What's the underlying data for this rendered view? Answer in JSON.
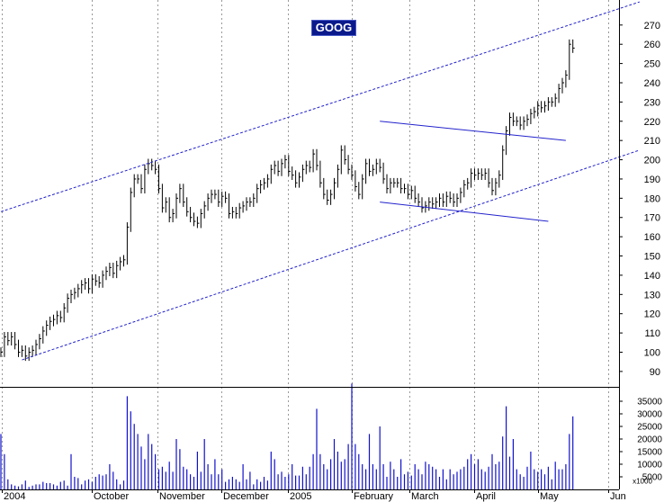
{
  "chart_data": {
    "type": "ohlc",
    "title": "GOOG",
    "x_labels": [
      "2004",
      "October",
      "November",
      "December",
      "2005",
      "February",
      "March",
      "April",
      "May",
      "Jun"
    ],
    "price_axis": {
      "ticks": [
        90,
        100,
        110,
        120,
        130,
        140,
        150,
        160,
        170,
        180,
        190,
        200,
        210,
        220,
        230,
        240,
        250,
        260,
        270
      ],
      "ylim": [
        82,
        283
      ]
    },
    "volume_axis": {
      "ticks": [
        5000,
        10000,
        15000,
        20000,
        25000,
        30000,
        35000
      ],
      "tick_labels": [
        "5000",
        "10000",
        "15000",
        "20000",
        "25000",
        "30000",
        "35000"
      ],
      "multiplier_label": "x1000",
      "ylim": [
        0,
        40000
      ]
    },
    "trendlines": [
      {
        "name": "upper channel",
        "style": "dashed",
        "from": [
          0,
          173
        ],
        "to": [
          182,
          282
        ]
      },
      {
        "name": "lower channel",
        "style": "dashed",
        "from": [
          6,
          96
        ],
        "to": [
          182,
          205
        ]
      },
      {
        "name": "resistance",
        "style": "solid",
        "from": [
          108,
          220
        ],
        "to": [
          161,
          210
        ]
      },
      {
        "name": "support",
        "style": "solid",
        "from": [
          108,
          178
        ],
        "to": [
          156,
          168
        ]
      }
    ],
    "colors": {
      "bars": "#000000",
      "volume": "#1111cc",
      "trendlines": "#2222cc",
      "grid": "#999999",
      "title_bg": "#0a1a8c"
    },
    "price_series": [
      [
        0,
        100
      ],
      [
        1,
        108
      ],
      [
        2,
        106
      ],
      [
        3,
        108
      ],
      [
        4,
        104
      ],
      [
        5,
        100
      ],
      [
        6,
        101
      ],
      [
        7,
        98
      ],
      [
        8,
        100
      ],
      [
        9,
        101
      ],
      [
        10,
        104
      ],
      [
        11,
        107
      ],
      [
        12,
        111
      ],
      [
        13,
        114
      ],
      [
        14,
        116
      ],
      [
        15,
        117
      ],
      [
        16,
        119
      ],
      [
        17,
        118
      ],
      [
        18,
        123
      ],
      [
        19,
        128
      ],
      [
        20,
        130
      ],
      [
        21,
        131
      ],
      [
        22,
        133
      ],
      [
        23,
        135
      ],
      [
        24,
        136
      ],
      [
        25,
        133
      ],
      [
        26,
        138
      ],
      [
        27,
        137
      ],
      [
        28,
        136
      ],
      [
        29,
        140
      ],
      [
        30,
        142
      ],
      [
        31,
        144
      ],
      [
        32,
        141
      ],
      [
        33,
        145
      ],
      [
        34,
        147
      ],
      [
        35,
        148
      ],
      [
        36,
        165
      ],
      [
        37,
        183
      ],
      [
        38,
        190
      ],
      [
        39,
        190
      ],
      [
        40,
        185
      ],
      [
        41,
        195
      ],
      [
        42,
        198
      ],
      [
        43,
        197
      ],
      [
        44,
        195
      ],
      [
        45,
        185
      ],
      [
        46,
        175
      ],
      [
        47,
        178
      ],
      [
        48,
        170
      ],
      [
        49,
        172
      ],
      [
        50,
        180
      ],
      [
        51,
        185
      ],
      [
        52,
        178
      ],
      [
        53,
        173
      ],
      [
        54,
        170
      ],
      [
        55,
        168
      ],
      [
        56,
        167
      ],
      [
        57,
        172
      ],
      [
        58,
        176
      ],
      [
        59,
        180
      ],
      [
        60,
        182
      ],
      [
        61,
        182
      ],
      [
        62,
        178
      ],
      [
        63,
        181
      ],
      [
        64,
        180
      ],
      [
        65,
        172
      ],
      [
        66,
        173
      ],
      [
        67,
        172
      ],
      [
        68,
        175
      ],
      [
        69,
        176
      ],
      [
        70,
        178
      ],
      [
        71,
        178
      ],
      [
        72,
        180
      ],
      [
        73,
        185
      ],
      [
        74,
        187
      ],
      [
        75,
        188
      ],
      [
        76,
        190
      ],
      [
        77,
        195
      ],
      [
        78,
        197
      ],
      [
        79,
        194
      ],
      [
        80,
        198
      ],
      [
        81,
        200
      ],
      [
        82,
        194
      ],
      [
        83,
        192
      ],
      [
        84,
        188
      ],
      [
        85,
        191
      ],
      [
        86,
        195
      ],
      [
        87,
        197
      ],
      [
        88,
        196
      ],
      [
        89,
        203
      ],
      [
        90,
        197
      ],
      [
        91,
        188
      ],
      [
        92,
        182
      ],
      [
        93,
        179
      ],
      [
        94,
        182
      ],
      [
        95,
        188
      ],
      [
        96,
        195
      ],
      [
        97,
        205
      ],
      [
        98,
        200
      ],
      [
        99,
        195
      ],
      [
        100,
        192
      ],
      [
        101,
        186
      ],
      [
        102,
        182
      ],
      [
        103,
        190
      ],
      [
        104,
        198
      ],
      [
        105,
        194
      ],
      [
        106,
        195
      ],
      [
        107,
        198
      ],
      [
        108,
        196
      ],
      [
        109,
        190
      ],
      [
        110,
        185
      ],
      [
        111,
        188
      ],
      [
        112,
        188
      ],
      [
        113,
        188
      ],
      [
        114,
        185
      ],
      [
        115,
        185
      ],
      [
        116,
        182
      ],
      [
        117,
        184
      ],
      [
        118,
        180
      ],
      [
        119,
        178
      ],
      [
        120,
        175
      ],
      [
        121,
        176
      ],
      [
        122,
        178
      ],
      [
        123,
        177
      ],
      [
        124,
        178
      ],
      [
        125,
        180
      ],
      [
        126,
        178
      ],
      [
        127,
        181
      ],
      [
        128,
        180
      ],
      [
        129,
        178
      ],
      [
        130,
        180
      ],
      [
        131,
        183
      ],
      [
        132,
        187
      ],
      [
        133,
        188
      ],
      [
        134,
        193
      ],
      [
        135,
        192
      ],
      [
        136,
        193
      ],
      [
        137,
        192
      ],
      [
        138,
        193
      ],
      [
        139,
        188
      ],
      [
        140,
        184
      ],
      [
        141,
        188
      ],
      [
        142,
        192
      ],
      [
        143,
        205
      ],
      [
        144,
        215
      ],
      [
        145,
        222
      ],
      [
        146,
        220
      ],
      [
        147,
        220
      ],
      [
        148,
        218
      ],
      [
        149,
        220
      ],
      [
        150,
        221
      ],
      [
        151,
        224
      ],
      [
        152,
        225
      ],
      [
        153,
        228
      ],
      [
        154,
        227
      ],
      [
        155,
        228
      ],
      [
        156,
        230
      ],
      [
        157,
        230
      ],
      [
        158,
        232
      ],
      [
        159,
        237
      ],
      [
        160,
        240
      ],
      [
        161,
        244
      ],
      [
        162,
        260
      ],
      [
        163,
        258
      ]
    ],
    "volume_series": [
      22000,
      14000,
      4000,
      2000,
      1500,
      1200,
      2000,
      3500,
      1000,
      1500,
      2000,
      2000,
      3000,
      2500,
      2500,
      2000,
      1500,
      3000,
      3500,
      1500,
      14000,
      5000,
      4500,
      2000,
      3500,
      4000,
      3000,
      5000,
      6000,
      5500,
      6000,
      10000,
      7000,
      4000,
      2000,
      3500,
      37000,
      31000,
      26000,
      22000,
      17000,
      12000,
      22000,
      18000,
      14000,
      8000,
      9000,
      7000,
      11000,
      7000,
      20000,
      16000,
      9000,
      8000,
      6000,
      5000,
      15000,
      7000,
      20000,
      10000,
      6000,
      12000,
      6000,
      8000,
      3000,
      4000,
      5000,
      4000,
      3000,
      10000,
      4000,
      7000,
      2000,
      4000,
      3000,
      5000,
      3500,
      15000,
      12000,
      6000,
      7000,
      5000,
      6000,
      10000,
      5500,
      5500,
      9000,
      6000,
      9000,
      14000,
      32000,
      14000,
      10000,
      8000,
      12000,
      20000,
      15000,
      11000,
      12000,
      18000,
      42000,
      18000,
      14000,
      10000,
      8000,
      22000,
      10000,
      8000,
      25000,
      10000,
      5000,
      11000,
      8000,
      5000,
      12000,
      6000,
      7000,
      5500,
      10000,
      8000,
      6000,
      11000,
      10000,
      9000,
      8000,
      5000,
      8000,
      4000,
      8000,
      6000,
      7000,
      8000,
      9000,
      12000,
      14000,
      10000,
      12000,
      8000,
      7000,
      9000,
      14000,
      10000,
      11000,
      21000,
      33000,
      13000,
      20000,
      8000,
      6000,
      5000,
      9000,
      15000,
      8000,
      7000,
      8000,
      6000,
      9000,
      4000,
      11000,
      8000,
      8000,
      10000,
      22000,
      29000
    ]
  }
}
